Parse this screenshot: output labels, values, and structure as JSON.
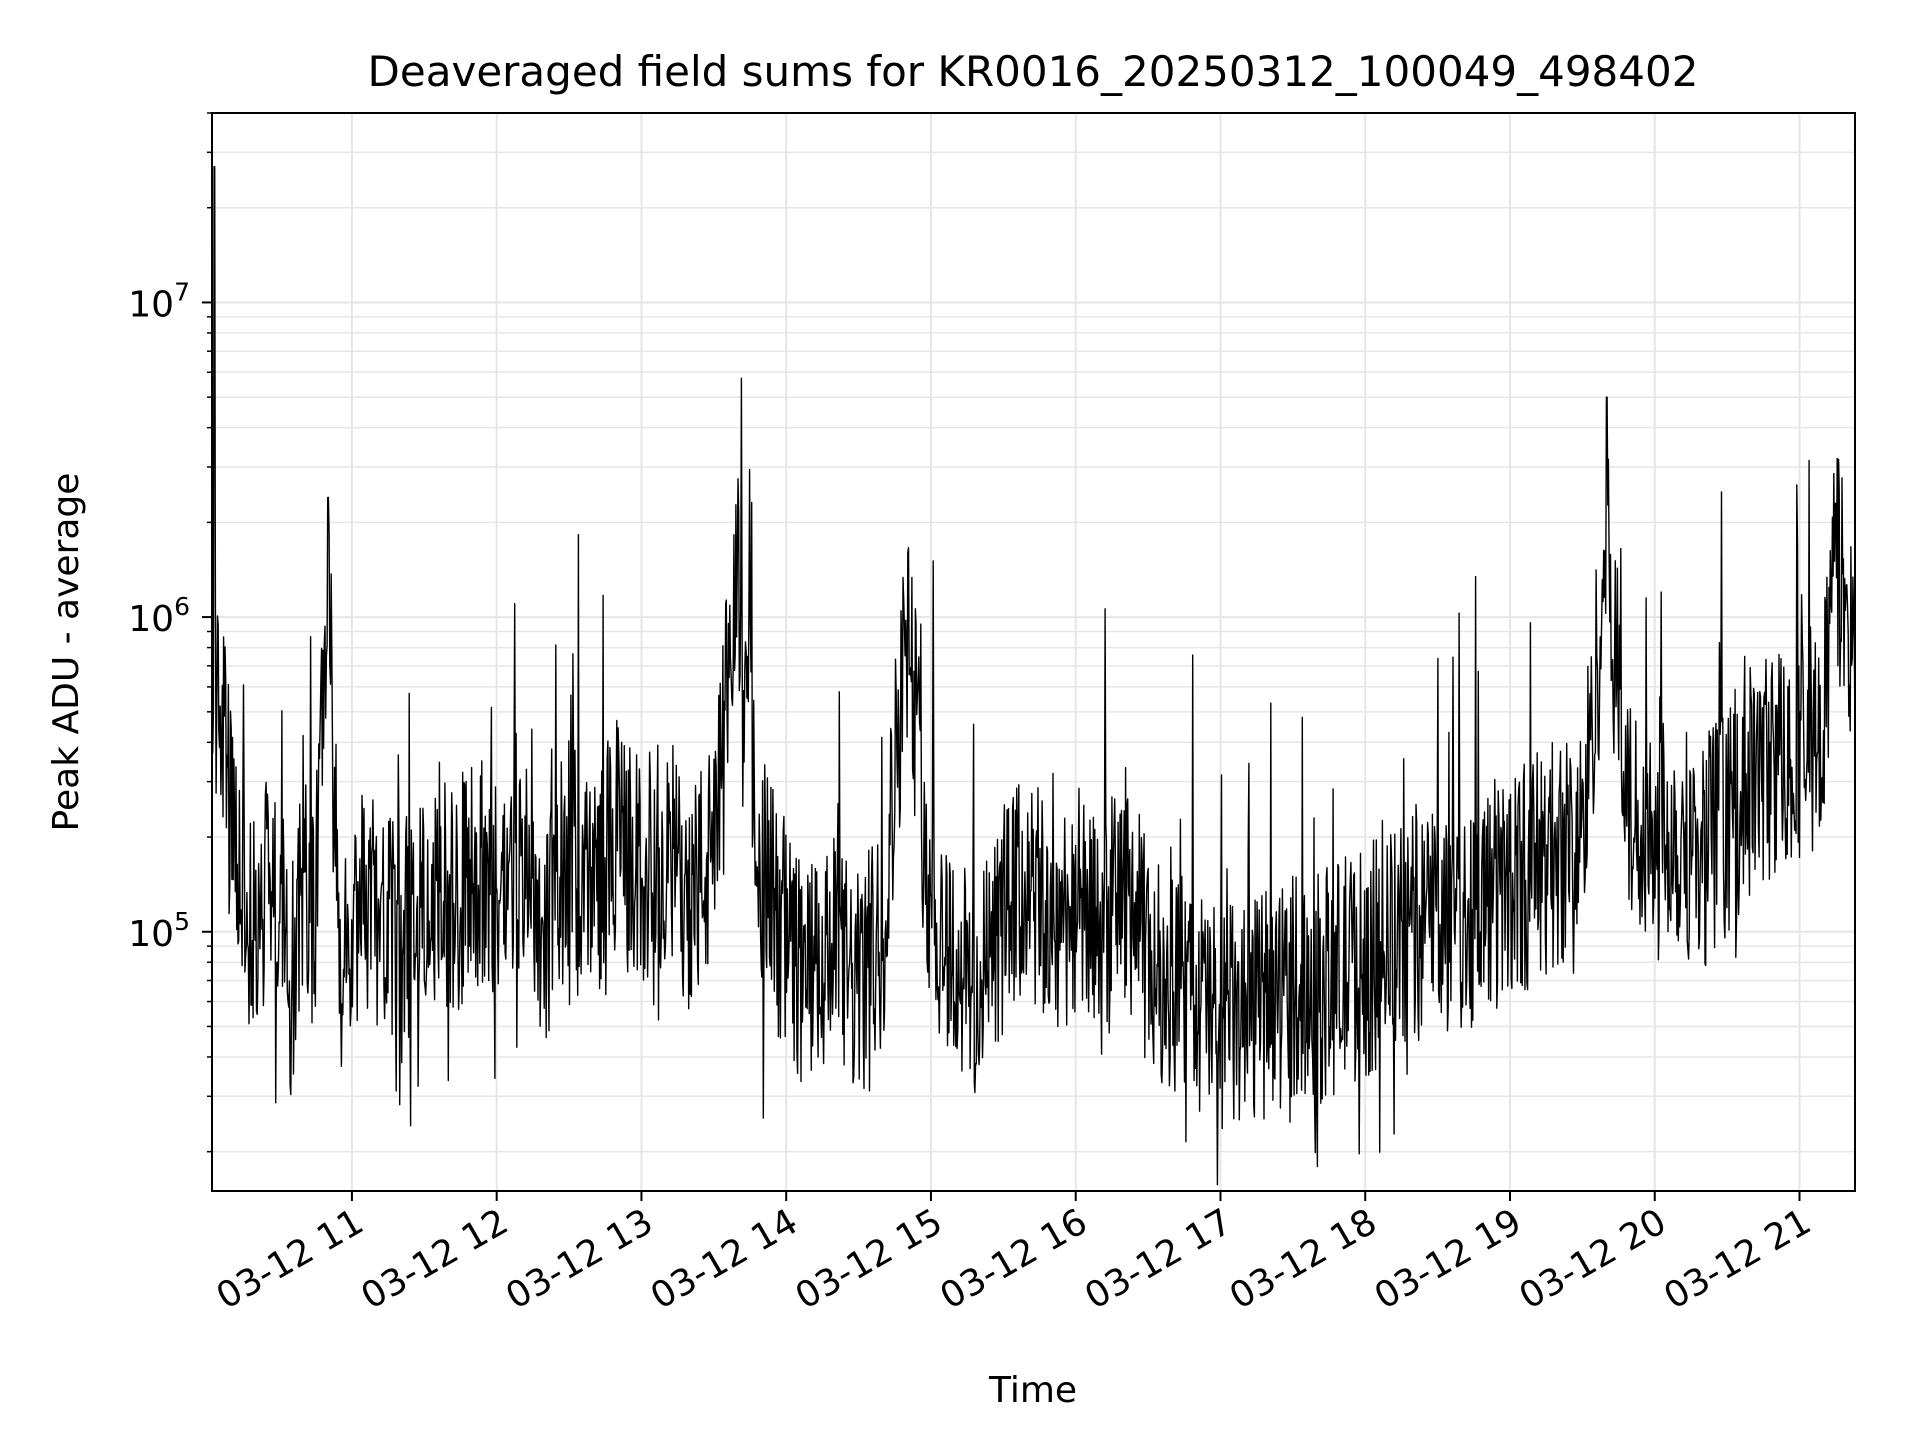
{
  "chart_data": {
    "type": "line",
    "title": "Deaveraged field sums for KR0016_20250312_100049_498402",
    "xlabel": "Time",
    "ylabel": "Peak ADU - average",
    "yscale": "log",
    "ylim": [
      15000,
      40000000
    ],
    "xlim": [
      "03-12 10:02",
      "03-12 21:23"
    ],
    "grid": true,
    "line_color": "#000000",
    "grid_color": "#e6e6e6",
    "x_ticks": [
      {
        "value": "03-12 11:00",
        "label": "03-12 11"
      },
      {
        "value": "03-12 12:00",
        "label": "03-12 12"
      },
      {
        "value": "03-12 13:00",
        "label": "03-12 13"
      },
      {
        "value": "03-12 14:00",
        "label": "03-12 14"
      },
      {
        "value": "03-12 15:00",
        "label": "03-12 15"
      },
      {
        "value": "03-12 16:00",
        "label": "03-12 16"
      },
      {
        "value": "03-12 17:00",
        "label": "03-12 17"
      },
      {
        "value": "03-12 18:00",
        "label": "03-12 18"
      },
      {
        "value": "03-12 19:00",
        "label": "03-12 19"
      },
      {
        "value": "03-12 20:00",
        "label": "03-12 20"
      },
      {
        "value": "03-12 21:00",
        "label": "03-12 21"
      }
    ],
    "y_ticks": [
      {
        "value": 100000,
        "base": "10",
        "exp": "5"
      },
      {
        "value": 1000000,
        "base": "10",
        "exp": "6"
      },
      {
        "value": 10000000,
        "base": "10",
        "exp": "7"
      }
    ],
    "series": [
      {
        "values": [
          [
            "03-12 10:02",
            280000
          ],
          [
            "03-12 10:03",
            27000000
          ],
          [
            "03-12 10:04",
            400000
          ],
          [
            "03-12 10:05",
            650000
          ],
          [
            "03-12 10:10",
            200000
          ],
          [
            "03-12 10:15",
            130000
          ],
          [
            "03-12 10:20",
            90000
          ],
          [
            "03-12 10:25",
            160000
          ],
          [
            "03-12 10:30",
            120000
          ],
          [
            "03-12 10:35",
            75000
          ],
          [
            "03-12 10:40",
            150000
          ],
          [
            "03-12 10:45",
            110000
          ],
          [
            "03-12 10:50",
            2400000
          ],
          [
            "03-12 10:55",
            60000
          ],
          [
            "03-12 11:00",
            95000
          ],
          [
            "03-12 11:10",
            120000
          ],
          [
            "03-12 11:20",
            85000
          ],
          [
            "03-12 11:30",
            150000
          ],
          [
            "03-12 11:40",
            110000
          ],
          [
            "03-12 11:50",
            160000
          ],
          [
            "03-12 12:00",
            130000
          ],
          [
            "03-12 12:10",
            170000
          ],
          [
            "03-12 12:20",
            100000
          ],
          [
            "03-12 12:30",
            180000
          ],
          [
            "03-12 12:40",
            140000
          ],
          [
            "03-12 12:50",
            200000
          ],
          [
            "03-12 13:00",
            150000
          ],
          [
            "03-12 13:10",
            190000
          ],
          [
            "03-12 13:20",
            130000
          ],
          [
            "03-12 13:30",
            170000
          ],
          [
            "03-12 13:40",
            1400000
          ],
          [
            "03-12 13:50",
            160000
          ],
          [
            "03-12 14:00",
            90000
          ],
          [
            "03-12 14:10",
            70000
          ],
          [
            "03-12 14:20",
            85000
          ],
          [
            "03-12 14:30",
            65000
          ],
          [
            "03-12 14:40",
            100000
          ],
          [
            "03-12 14:50",
            1000000
          ],
          [
            "03-12 15:00",
            120000
          ],
          [
            "03-12 15:10",
            80000
          ],
          [
            "03-12 15:20",
            60000
          ],
          [
            "03-12 15:30",
            110000
          ],
          [
            "03-12 15:40",
            140000
          ],
          [
            "03-12 15:50",
            100000
          ],
          [
            "03-12 16:00",
            130000
          ],
          [
            "03-12 16:10",
            90000
          ],
          [
            "03-12 16:20",
            150000
          ],
          [
            "03-12 16:30",
            80000
          ],
          [
            "03-12 16:40",
            70000
          ],
          [
            "03-12 16:50",
            60000
          ],
          [
            "03-12 17:00",
            55000
          ],
          [
            "03-12 17:10",
            50000
          ],
          [
            "03-12 17:20",
            60000
          ],
          [
            "03-12 17:30",
            70000
          ],
          [
            "03-12 17:40",
            65000
          ],
          [
            "03-12 17:50",
            75000
          ],
          [
            "03-12 18:00",
            80000
          ],
          [
            "03-12 18:10",
            90000
          ],
          [
            "03-12 18:20",
            100000
          ],
          [
            "03-12 18:30",
            120000
          ],
          [
            "03-12 18:40",
            110000
          ],
          [
            "03-12 18:50",
            130000
          ],
          [
            "03-12 19:00",
            140000
          ],
          [
            "03-12 19:10",
            160000
          ],
          [
            "03-12 19:20",
            180000
          ],
          [
            "03-12 19:30",
            200000
          ],
          [
            "03-12 19:40",
            5000000
          ],
          [
            "03-12 19:50",
            220000
          ],
          [
            "03-12 20:00",
            250000
          ],
          [
            "03-12 20:10",
            200000
          ],
          [
            "03-12 20:20",
            180000
          ],
          [
            "03-12 20:30",
            230000
          ],
          [
            "03-12 20:40",
            300000
          ],
          [
            "03-12 20:50",
            350000
          ],
          [
            "03-12 21:00",
            400000
          ],
          [
            "03-12 21:10",
            450000
          ],
          [
            "03-12 21:15",
            2300000
          ],
          [
            "03-12 21:23",
            700000
          ]
        ]
      }
    ]
  }
}
